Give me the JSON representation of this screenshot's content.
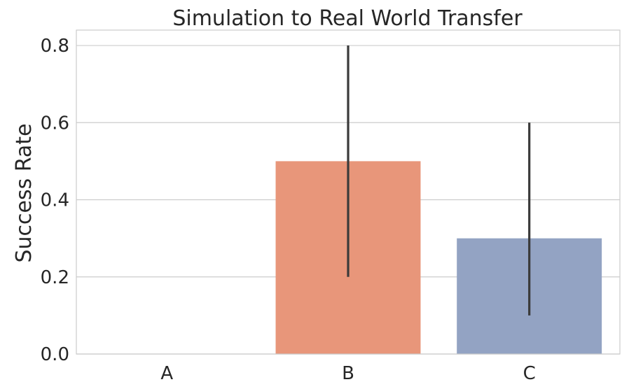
{
  "chart_data": {
    "type": "bar",
    "title": "Simulation to Real World Transfer",
    "xlabel": "",
    "ylabel": "Success Rate",
    "categories": [
      "A",
      "B",
      "C"
    ],
    "values": [
      0.0,
      0.5,
      0.3
    ],
    "error_bars": [
      {
        "low": 0.0,
        "high": 0.0
      },
      {
        "low": 0.2,
        "high": 0.8
      },
      {
        "low": 0.1,
        "high": 0.6
      }
    ],
    "colors": [
      "#66c2a5",
      "#e8967a",
      "#93a3c3"
    ],
    "error_color": "#3a3a3a",
    "ylim": [
      0,
      0.84
    ],
    "yticks": [
      0.0,
      0.2,
      0.4,
      0.6,
      0.8
    ],
    "ytick_labels": [
      "0.0",
      "0.2",
      "0.4",
      "0.6",
      "0.8"
    ],
    "grid": true
  }
}
